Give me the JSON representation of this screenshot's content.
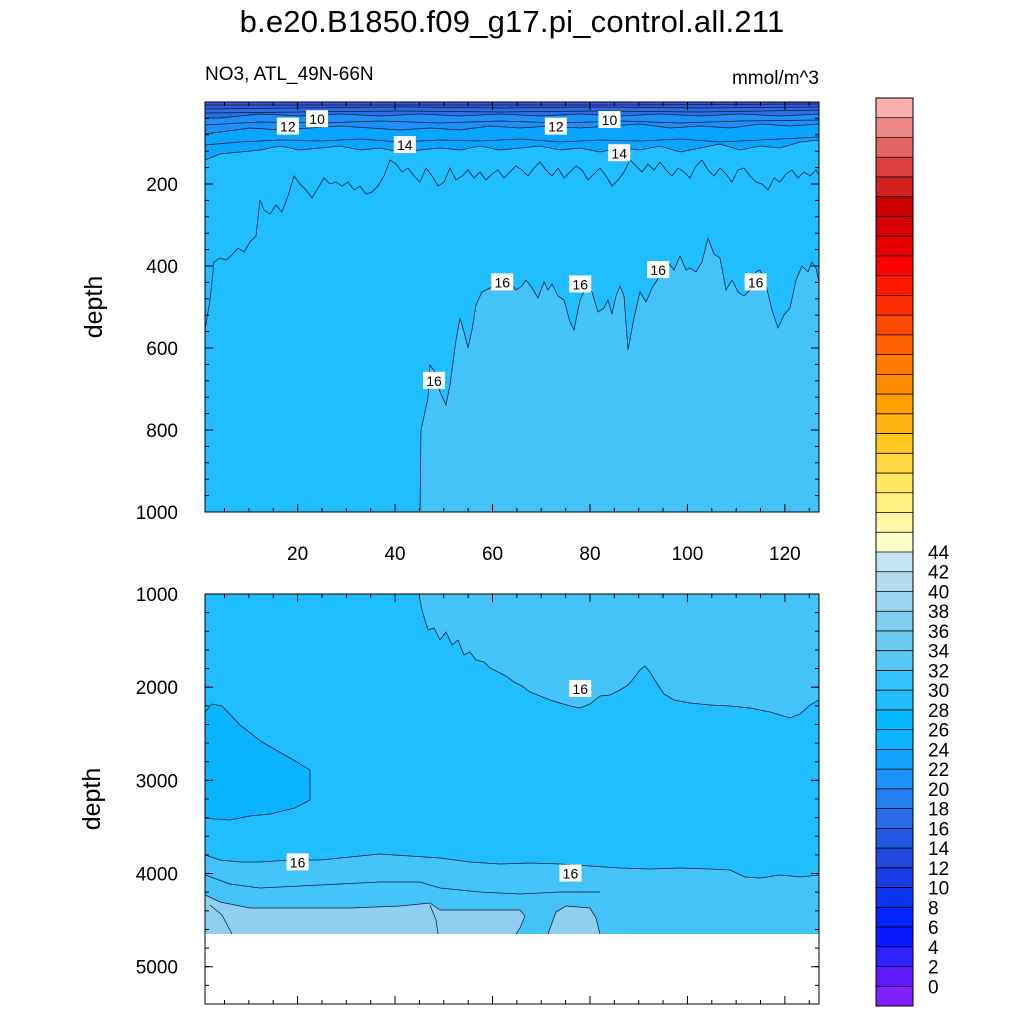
{
  "title": "b.e20.B1850.f09_g17.pi_control.all.211",
  "left_string": "NO3, ATL_49N-66N",
  "right_string": "mmol/m^3",
  "chart_data": [
    {
      "type": "contour",
      "panel": "upper",
      "ylabel": "depth",
      "y_reversed": true,
      "ylim": [
        0,
        1000
      ],
      "xlim": [
        1,
        127
      ],
      "x_ticks": [
        20,
        40,
        60,
        80,
        100,
        120
      ],
      "y_ticks": [
        200,
        400,
        600,
        800,
        1000
      ],
      "contour_labels": [
        {
          "value": "10",
          "x": 24,
          "y": 42
        },
        {
          "value": "10",
          "x": 84,
          "y": 44
        },
        {
          "value": "12",
          "x": 18,
          "y": 60
        },
        {
          "value": "12",
          "x": 73,
          "y": 60
        },
        {
          "value": "14",
          "x": 42,
          "y": 105
        },
        {
          "value": "14",
          "x": 86,
          "y": 125
        },
        {
          "value": "16",
          "x": 62,
          "y": 440
        },
        {
          "value": "16",
          "x": 78,
          "y": 445
        },
        {
          "value": "16",
          "x": 94,
          "y": 410
        },
        {
          "value": "16",
          "x": 114,
          "y": 440
        },
        {
          "value": "16",
          "x": 48,
          "y": 680
        }
      ]
    },
    {
      "type": "contour",
      "panel": "lower",
      "ylabel": "depth",
      "y_reversed": true,
      "ylim": [
        1000,
        5400
      ],
      "xlim": [
        1,
        127
      ],
      "y_ticks": [
        1000,
        2000,
        3000,
        4000,
        5000
      ],
      "no_data_below": 4620,
      "contour_labels": [
        {
          "value": "16",
          "x": 78,
          "y": 2020
        },
        {
          "value": "16",
          "x": 20,
          "y": 3880
        },
        {
          "value": "16",
          "x": 76,
          "y": 4000
        }
      ]
    }
  ],
  "colorbar": {
    "labels": [
      "44",
      "42",
      "40",
      "38",
      "36",
      "34",
      "32",
      "30",
      "28",
      "26",
      "24",
      "22",
      "20",
      "18",
      "16",
      "14",
      "12",
      "10",
      "8",
      "6",
      "4",
      "2",
      "0"
    ],
    "colors": [
      "#8020ff",
      "#6018ff",
      "#3020ff",
      "#0818ff",
      "#0024ff",
      "#0c34f0",
      "#1a3ce6",
      "#2048dc",
      "#2458e0",
      "#2a6ae8",
      "#247ef0",
      "#1a92f8",
      "#12a2ff",
      "#0ab4ff",
      "#04baff",
      "#1ebeff",
      "#34c4fb",
      "#56c8f4",
      "#6ccaf0",
      "#82cef0",
      "#9ad4f0",
      "#b2dcee",
      "#c4e4f2",
      "#ffffc8",
      "#fff8a8",
      "#fff080",
      "#ffe860",
      "#ffd840",
      "#ffc820",
      "#ffb410",
      "#ffa000",
      "#ff8c00",
      "#ff7800",
      "#ff6000",
      "#ff4800",
      "#ff3000",
      "#ff1800",
      "#ff0000",
      "#e80000",
      "#d80000",
      "#cc0000",
      "#d42020",
      "#de4040",
      "#e46464",
      "#ee8888",
      "#f8b0b0"
    ]
  }
}
